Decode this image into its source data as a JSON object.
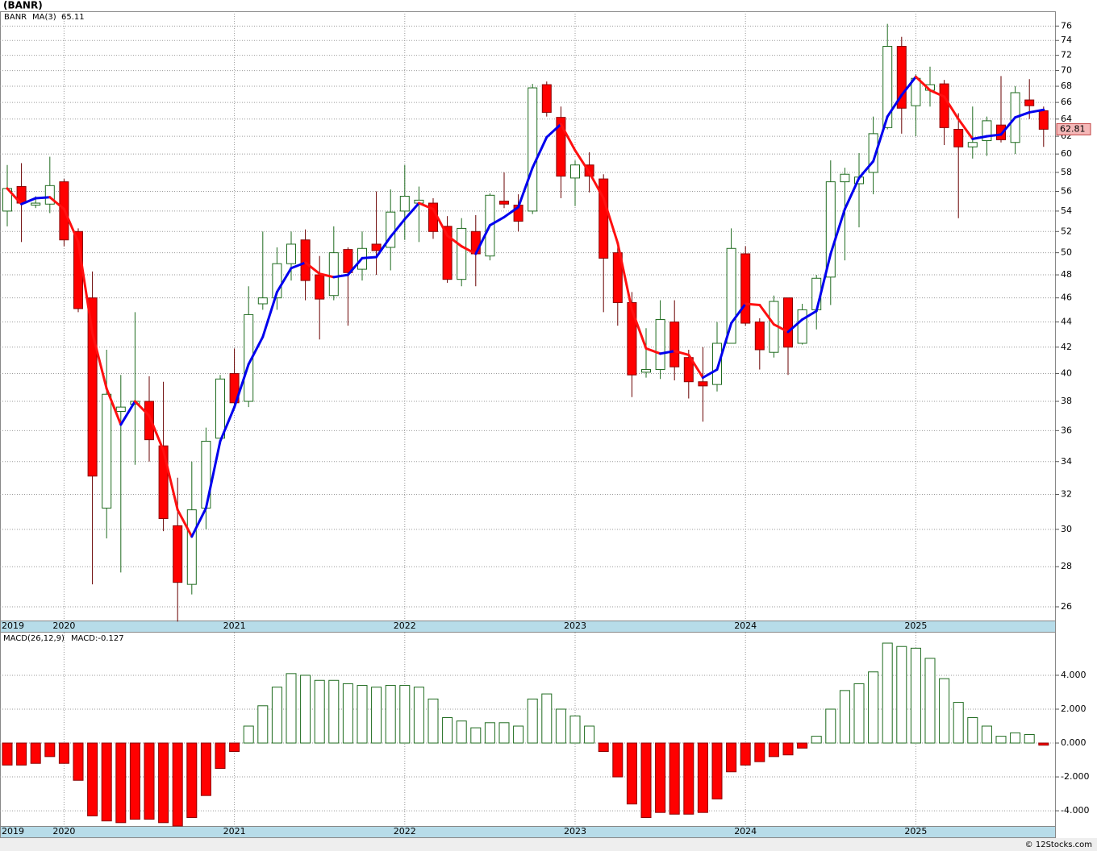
{
  "header": {
    "title": "(BANR)"
  },
  "footer": "© 12Stocks.com",
  "chart_data": [
    {
      "type": "candlestick",
      "symbol": "BANR",
      "categories": [
        "2019",
        null,
        null,
        null,
        "2020",
        null,
        null,
        null,
        null,
        null,
        null,
        null,
        null,
        null,
        null,
        null,
        "2021",
        null,
        null,
        null,
        null,
        null,
        null,
        null,
        null,
        null,
        null,
        null,
        "2022",
        null,
        null,
        null,
        null,
        null,
        null,
        null,
        null,
        null,
        null,
        null,
        "2023",
        null,
        null,
        null,
        null,
        null,
        null,
        null,
        null,
        null,
        null,
        null,
        "2024",
        null,
        null,
        null,
        null,
        null,
        null,
        null,
        null,
        null,
        null,
        null,
        "2025",
        null,
        null,
        null,
        null,
        null,
        null,
        null,
        null,
        null
      ],
      "open": [
        54,
        56.5,
        54.6,
        54.7,
        57,
        52,
        46,
        31.2,
        37.3,
        37.8,
        38,
        35,
        30.2,
        27.1,
        31.2,
        35.5,
        40,
        38,
        45.5,
        46,
        49,
        51.2,
        48,
        46.2,
        50.3,
        48.5,
        50.8,
        50.5,
        54,
        54.8,
        54.8,
        52.5,
        47.6,
        52,
        49.7,
        55,
        54.6,
        54,
        68.2,
        64.2,
        57.4,
        58.8,
        57.3,
        50,
        45.6,
        40.1,
        40.3,
        44,
        41.2,
        39.4,
        39.2,
        42.3,
        49.9,
        44,
        41.6,
        46,
        42.3,
        45,
        47.8,
        57,
        56.8,
        58,
        63,
        73.2,
        65.6,
        67.5,
        68.3,
        62.8,
        60.8,
        61.5,
        63.3,
        61.3,
        66.3,
        65
      ],
      "high": [
        58.8,
        59,
        55.5,
        59.7,
        57.3,
        52.3,
        48.3,
        41.8,
        39.9,
        44.8,
        39.8,
        39.4,
        33,
        34,
        36.2,
        39.9,
        41.9,
        47,
        52,
        50.5,
        52,
        52.2,
        49.7,
        52.5,
        50.5,
        52,
        56,
        56.2,
        58.8,
        56.5,
        55.3,
        53.5,
        53.3,
        53.6,
        55.8,
        58,
        55.7,
        68.3,
        68.6,
        65.5,
        59.3,
        60.2,
        57.8,
        50.5,
        46.5,
        43.5,
        45.8,
        45.8,
        41.8,
        42,
        44,
        52.3,
        50.6,
        44.3,
        46.2,
        46,
        45.5,
        48,
        59.3,
        58.5,
        60.1,
        64.3,
        76.3,
        74.5,
        69.5,
        70.5,
        68.8,
        64.7,
        65.5,
        64.3,
        69.3,
        68,
        68.9,
        65.5
      ],
      "low": [
        52.5,
        51,
        54.3,
        53.8,
        50.6,
        44.8,
        27.1,
        29.5,
        27.7,
        33.8,
        34,
        29.9,
        25.3,
        26.6,
        30,
        35.5,
        37.5,
        37.6,
        45,
        45,
        47.5,
        45.8,
        42.6,
        45.8,
        43.7,
        47.5,
        48,
        48.4,
        51.2,
        51,
        51.3,
        47.3,
        47,
        47,
        49.3,
        54.3,
        52,
        53.7,
        64.3,
        55.3,
        54.5,
        55.9,
        44.8,
        43.7,
        38.3,
        39.7,
        39.6,
        39.5,
        38.2,
        36.6,
        38.7,
        42.3,
        43.7,
        40.3,
        41.2,
        39.9,
        42.2,
        43.4,
        45.4,
        49.3,
        52.4,
        55.7,
        62.8,
        62.3,
        62,
        65.5,
        61,
        53.3,
        59.5,
        59.8,
        61.3,
        60,
        64,
        60.8
      ],
      "close": [
        56.3,
        54.8,
        54.8,
        56.6,
        51.2,
        45.1,
        33.1,
        38.5,
        37.6,
        38,
        35.4,
        30.6,
        27.2,
        31.1,
        35.3,
        39.6,
        37.9,
        44.6,
        46,
        49,
        50.8,
        47.5,
        45.9,
        50,
        48.2,
        50.4,
        50.2,
        53.9,
        55.5,
        55.1,
        52,
        47.6,
        52.3,
        49.9,
        55.6,
        54.7,
        53,
        67.8,
        64.8,
        57.6,
        58.8,
        57.6,
        49.5,
        45.6,
        39.9,
        40.3,
        44.2,
        40.5,
        39.4,
        39.1,
        42.3,
        50.4,
        43.9,
        41.8,
        45.7,
        42,
        45,
        47.7,
        57,
        57.8,
        57.5,
        62.3,
        73.2,
        65.3,
        69,
        68.2,
        63,
        60.8,
        61.3,
        63.8,
        61.6,
        67.2,
        65.6,
        62.81
      ],
      "up_color": "#1f6b1f",
      "down_color": "#ff0000",
      "symbol_color": "#1f6b1f",
      "series": [
        {
          "name": "MA(3)",
          "up_color": "#0000ee",
          "down_color": "#ff1010",
          "values": [
            56.3,
            54.7,
            55.3,
            55.4,
            54.2,
            51,
            43.1,
            38.9,
            36.4,
            38,
            37,
            34.7,
            31.1,
            29.6,
            31.2,
            35.3,
            37.6,
            40.7,
            42.8,
            46.5,
            48.6,
            49.1,
            48.1,
            47.8,
            48,
            49.5,
            49.6,
            51.5,
            53.2,
            54.8,
            54.2,
            51.6,
            50.6,
            49.9,
            52.6,
            53.4,
            54.4,
            58.5,
            61.9,
            63.4,
            60.4,
            58,
            55.3,
            50.9,
            45,
            41.9,
            41.5,
            41.7,
            41.4,
            39.7,
            40.3,
            43.9,
            45.5,
            45.4,
            43.8,
            43.2,
            44.2,
            44.9,
            49.9,
            54.2,
            57.4,
            59.2,
            64.3,
            66.9,
            69.2,
            67.5,
            66.7,
            64,
            61.7,
            62,
            62.2,
            64.2,
            64.8,
            65.11
          ]
        }
      ],
      "ylim": [
        25.35,
        78.1
      ],
      "log_scale": true,
      "grid": true,
      "yticks": [
        26,
        28,
        30,
        32,
        34,
        36,
        38,
        40,
        42,
        44,
        46,
        48,
        50,
        52,
        54,
        56,
        58,
        60,
        62,
        64,
        66,
        68,
        70,
        72,
        74,
        76
      ]
    },
    {
      "type": "bar",
      "title": "MACD(26,12,9)",
      "categories": [
        "2019",
        null,
        null,
        null,
        "2020",
        null,
        null,
        null,
        null,
        null,
        null,
        null,
        null,
        null,
        null,
        null,
        "2021",
        null,
        null,
        null,
        null,
        null,
        null,
        null,
        null,
        null,
        null,
        null,
        "2022",
        null,
        null,
        null,
        null,
        null,
        null,
        null,
        null,
        null,
        null,
        null,
        "2023",
        null,
        null,
        null,
        null,
        null,
        null,
        null,
        null,
        null,
        null,
        null,
        "2024",
        null,
        null,
        null,
        null,
        null,
        null,
        null,
        null,
        null,
        null,
        null,
        "2025",
        null,
        null,
        null,
        null,
        null,
        null,
        null,
        null,
        null
      ],
      "series": [
        {
          "name": "MACD:",
          "up_color": "#1f6b1f",
          "down_color": "#ff0000",
          "values": [
            -1.3,
            -1.3,
            -1.2,
            -0.8,
            -1.2,
            -2.2,
            -4.3,
            -4.6,
            -4.7,
            -4.5,
            -4.5,
            -4.7,
            -4.9,
            -4.4,
            -3.1,
            -1.5,
            -0.5,
            1,
            2.2,
            3.3,
            4.1,
            4,
            3.7,
            3.7,
            3.5,
            3.4,
            3.3,
            3.4,
            3.4,
            3.3,
            2.6,
            1.5,
            1.3,
            0.9,
            1.2,
            1.2,
            1,
            2.6,
            2.9,
            2,
            1.6,
            1,
            -0.5,
            -2,
            -3.6,
            -4.4,
            -4.1,
            -4.2,
            -4.2,
            -4.1,
            -3.3,
            -1.7,
            -1.3,
            -1.1,
            -0.8,
            -0.7,
            -0.3,
            0.4,
            2,
            3.1,
            3.5,
            4.2,
            5.9,
            5.7,
            5.6,
            5,
            3.8,
            2.4,
            1.5,
            1,
            0.4,
            0.6,
            0.5,
            -0.127
          ]
        }
      ],
      "ylim": [
        -4.9,
        6.52
      ],
      "grid": true,
      "yticks": [
        {
          "value": 4,
          "label": "4.000"
        },
        {
          "value": 2,
          "label": "2.000"
        },
        {
          "value": 0,
          "label": "0.000"
        },
        {
          "value": -2,
          "label": "-2.000"
        },
        {
          "value": -4,
          "label": "-4.000"
        }
      ]
    }
  ]
}
